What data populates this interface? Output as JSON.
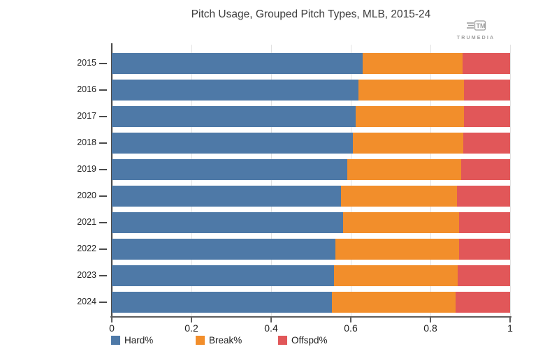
{
  "title": "Pitch Usage, Grouped Pitch Types, MLB, 2015-24",
  "watermark": {
    "brand": "TRUMEDIA"
  },
  "colors": {
    "background": "#ffffff",
    "grid": "#e2e2e2",
    "axis": "#5e5e5e",
    "y_axis": "#4a4a4a",
    "tick_text": "#1f1f1f",
    "title_text": "#3d3d3d",
    "watermark_text": "#9e9e9e"
  },
  "chart_data": {
    "type": "bar",
    "orientation": "horizontal",
    "stacked": true,
    "title": "Pitch Usage, Grouped Pitch Types, MLB, 2015-24",
    "categories": [
      "2015",
      "2016",
      "2017",
      "2018",
      "2019",
      "2020",
      "2021",
      "2022",
      "2023",
      "2024"
    ],
    "series": [
      {
        "name": "Hard%",
        "color": "#4e79a7",
        "values": [
          0.63,
          0.62,
          0.612,
          0.606,
          0.592,
          0.575,
          0.581,
          0.562,
          0.558,
          0.552
        ]
      },
      {
        "name": "Break%",
        "color": "#f28e2b",
        "values": [
          0.25,
          0.264,
          0.273,
          0.277,
          0.286,
          0.292,
          0.291,
          0.31,
          0.31,
          0.312
        ]
      },
      {
        "name": "Offspd%",
        "color": "#e15759",
        "values": [
          0.12,
          0.116,
          0.115,
          0.117,
          0.122,
          0.133,
          0.128,
          0.128,
          0.132,
          0.136
        ]
      }
    ],
    "xlim": [
      0,
      1
    ],
    "x_ticks": [
      {
        "value": 0,
        "label": "0"
      },
      {
        "value": 0.2,
        "label": "0.2"
      },
      {
        "value": 0.4,
        "label": "0.4"
      },
      {
        "value": 0.6,
        "label": "0.6"
      },
      {
        "value": 0.8,
        "label": "0.8"
      },
      {
        "value": 1,
        "label": "1"
      }
    ],
    "grid": true,
    "legend_position": "bottom"
  }
}
